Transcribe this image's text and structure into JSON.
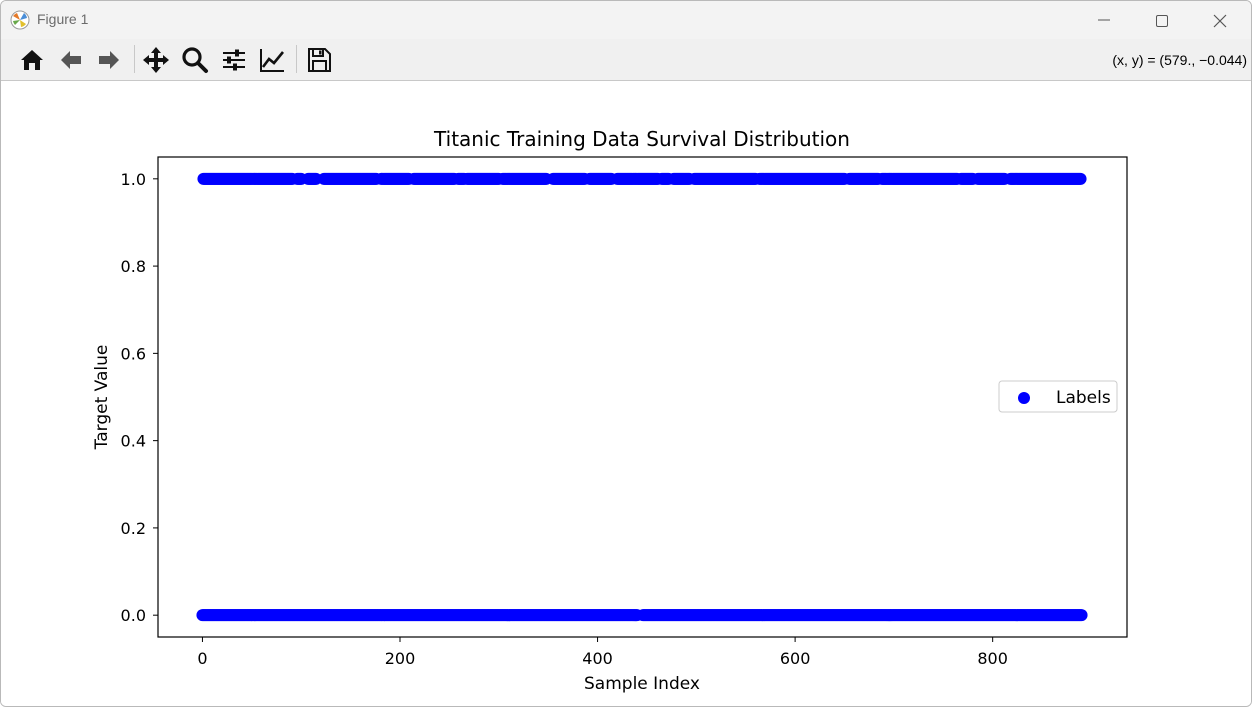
{
  "window": {
    "title": "Figure 1"
  },
  "toolbar": {
    "buttons": [
      {
        "name": "home-icon"
      },
      {
        "name": "back-arrow-icon"
      },
      {
        "name": "forward-arrow-icon"
      },
      {
        "name": "pan-icon"
      },
      {
        "name": "zoom-icon"
      },
      {
        "name": "configure-subplots-icon"
      },
      {
        "name": "edit-axis-icon"
      },
      {
        "name": "save-icon"
      }
    ],
    "coords": "(x, y) = (579., −0.044)"
  },
  "colors": {
    "points": "#0000ff",
    "axes": "#000000"
  },
  "chart_data": {
    "type": "scatter",
    "title": "Titanic Training Data Survival Distribution",
    "xlabel": "Sample Index",
    "ylabel": "Target Value",
    "xlim": [
      -45,
      936
    ],
    "ylim": [
      -0.05,
      1.05
    ],
    "xticks": [
      0,
      200,
      400,
      600,
      800
    ],
    "xtick_labels": [
      "0",
      "200",
      "400",
      "600",
      "800"
    ],
    "yticks": [
      0.0,
      0.2,
      0.4,
      0.6,
      0.8,
      1.0
    ],
    "ytick_labels": [
      "0.0",
      "0.2",
      "0.4",
      "0.6",
      "0.8",
      "1.0"
    ],
    "grid": false,
    "legend": {
      "position": "center-right",
      "entries": [
        "Labels"
      ]
    },
    "series": [
      {
        "name": "Labels",
        "marker": "circle",
        "color": "#0000ff",
        "values_at_1": [
          [
            1,
            91
          ],
          [
            96,
            100
          ],
          [
            107,
            115
          ],
          [
            123,
            176
          ],
          [
            181,
            209
          ],
          [
            214,
            255
          ],
          [
            259,
            265
          ],
          [
            268,
            300
          ],
          [
            304,
            348
          ],
          [
            355,
            387
          ],
          [
            392,
            414
          ],
          [
            420,
            461
          ],
          [
            465,
            472
          ],
          [
            477,
            493
          ],
          [
            498,
            560
          ],
          [
            564,
            650
          ],
          [
            655,
            684
          ],
          [
            688,
            764
          ],
          [
            768,
            780
          ],
          [
            785,
            812
          ],
          [
            818,
            889
          ]
        ],
        "values_at_0": [
          [
            0,
            440
          ],
          [
            446,
            890
          ]
        ]
      }
    ]
  }
}
